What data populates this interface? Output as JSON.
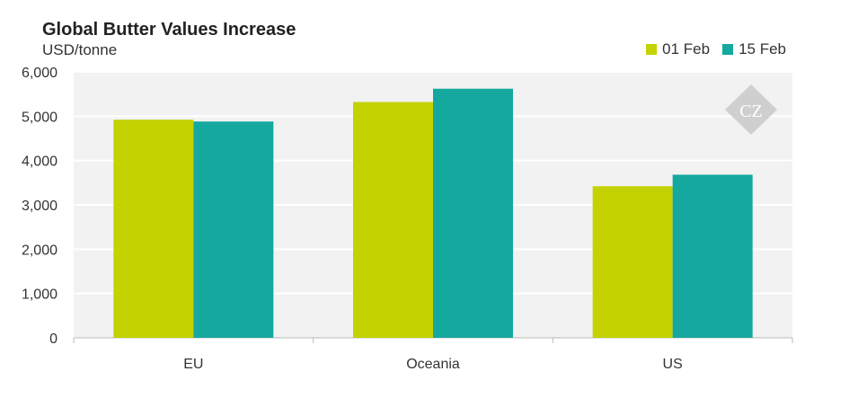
{
  "chart_data": {
    "type": "bar",
    "title": "Global Butter Values Increase",
    "ylabel": "USD/tonne",
    "xlabel": "",
    "categories": [
      "EU",
      "Oceania",
      "US"
    ],
    "series": [
      {
        "name": "01 Feb",
        "values": [
          4920,
          5320,
          3420
        ]
      },
      {
        "name": "15 Feb",
        "values": [
          4880,
          5620,
          3680
        ]
      }
    ],
    "ylim": [
      0,
      6000
    ],
    "yticks": [
      0,
      1000,
      2000,
      3000,
      4000,
      5000,
      6000
    ],
    "ytick_labels": [
      "0",
      "1,000",
      "2,000",
      "3,000",
      "4,000",
      "5,000",
      "6,000"
    ],
    "grid": true,
    "legend_position": "top-right",
    "colors": [
      "#c3d200",
      "#14a89e"
    ],
    "plot_background": "#f2f2f2"
  },
  "watermark": {
    "text": "CZ"
  }
}
